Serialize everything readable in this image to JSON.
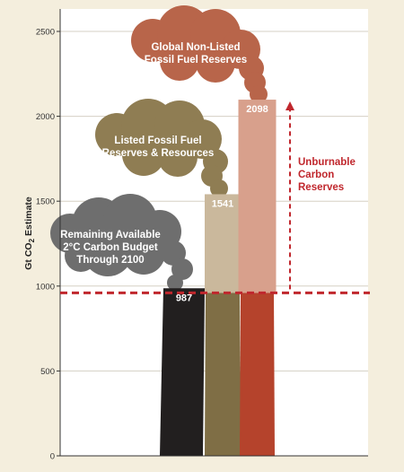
{
  "chart_data": {
    "type": "bar",
    "ylabel": "Gt CO2 Estimate",
    "ylim": [
      0,
      2600
    ],
    "yticks": [
      0,
      500,
      1000,
      1500,
      2000,
      2500
    ],
    "bars": [
      {
        "value": 987,
        "label": "987",
        "color": "#221f1f",
        "cloud": [
          "Remaining Available",
          "2°C Carbon Budget",
          "Through 2100"
        ],
        "cloud_color": "#6e6e6e"
      },
      {
        "value": 1541,
        "label": "1541",
        "base_color": "#7f6e45",
        "top_color": "#cab89c",
        "cloud": [
          "Listed Fossil Fuel",
          "Reserves & Resources"
        ],
        "cloud_color": "#8f7d53"
      },
      {
        "value": 2098,
        "label": "2098",
        "base_color": "#b5432c",
        "top_color": "#d8a08c",
        "cloud": [
          "Global Non-Listed",
          "Fossil Fuel Reserves"
        ],
        "cloud_color": "#b8654a"
      }
    ],
    "reference_line": {
      "value": 960,
      "color": "#c0272d",
      "style": "dashed"
    },
    "annotation": {
      "lines": [
        "Unburnable",
        "Carbon",
        "Reserves"
      ],
      "color": "#c0272d"
    }
  }
}
